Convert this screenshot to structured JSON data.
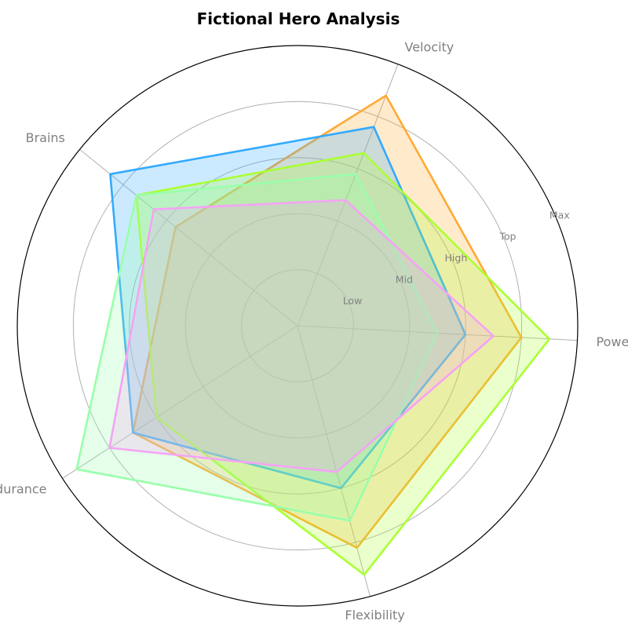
{
  "chart_data": {
    "type": "radar",
    "title": "Fictional Hero Analysis",
    "axes": [
      "Power",
      "Velocity",
      "Brains",
      "Endurance",
      "Flexibility"
    ],
    "scale_labels": [
      "Low",
      "Mid",
      "High",
      "Top",
      "Max"
    ],
    "rmax": 5,
    "grid": true,
    "series": [
      {
        "color": "#ffaa33",
        "values": [
          4.0,
          4.4,
          2.8,
          3.5,
          4.1
        ]
      },
      {
        "color": "#33aaff",
        "values": [
          3.0,
          3.8,
          4.3,
          3.5,
          3.0
        ]
      },
      {
        "color": "#aaff33",
        "values": [
          4.5,
          3.3,
          3.7,
          3.0,
          4.6
        ]
      },
      {
        "color": "#99ffaa",
        "values": [
          2.5,
          2.9,
          3.7,
          4.7,
          3.6
        ]
      },
      {
        "color": "#f5a3f5",
        "values": [
          3.5,
          2.4,
          3.3,
          4.0,
          2.7
        ]
      }
    ]
  }
}
